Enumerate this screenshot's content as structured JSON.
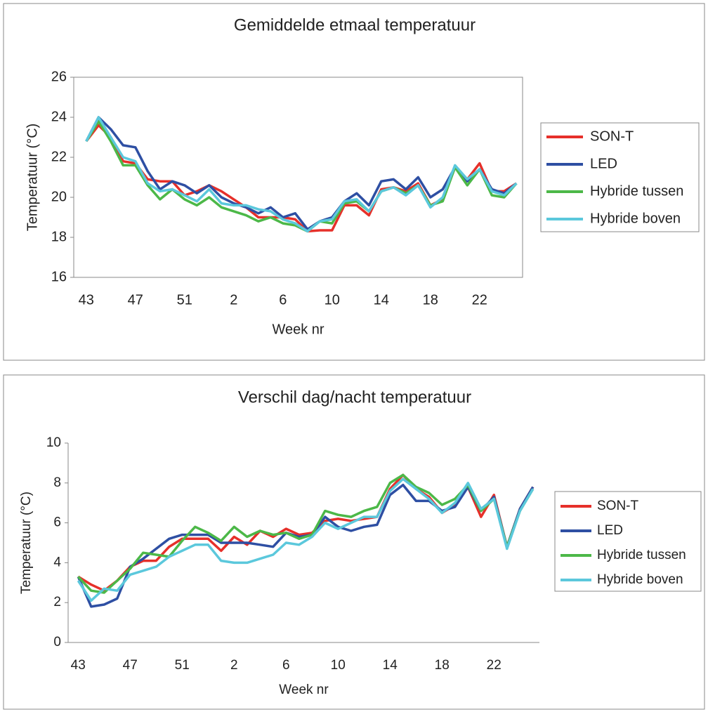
{
  "chart_data": [
    {
      "type": "line",
      "title": "Gemiddelde etmaal temperatuur",
      "x_label": "Week nr",
      "y_label": "Temperatuur (°C)",
      "categories": [
        "43",
        null,
        null,
        null,
        "47",
        null,
        null,
        null,
        "51",
        null,
        null,
        null,
        "2",
        null,
        null,
        null,
        "6",
        null,
        null,
        null,
        "10",
        null,
        null,
        null,
        "14",
        null,
        null,
        null,
        "18",
        null,
        null,
        null,
        "22",
        null,
        null,
        null
      ],
      "ylim": [
        16,
        26
      ],
      "yticks": [
        16,
        18,
        20,
        22,
        24,
        26
      ],
      "grid": false,
      "series": [
        {
          "name": "SON-T",
          "color": "#e6302a",
          "values": [
            22.8,
            23.6,
            23.0,
            21.8,
            21.7,
            20.9,
            20.8,
            20.8,
            20.1,
            20.3,
            20.6,
            20.3,
            19.9,
            19.5,
            19.0,
            19.0,
            19.0,
            18.9,
            18.3,
            18.35,
            18.35,
            19.6,
            19.6,
            19.1,
            20.4,
            20.5,
            20.3,
            20.7,
            19.6,
            19.9,
            21.5,
            20.9,
            21.7,
            20.3,
            20.3,
            20.7
          ]
        },
        {
          "name": "LED",
          "color": "#2e4fa3",
          "values": [
            22.8,
            24.0,
            23.4,
            22.6,
            22.5,
            21.3,
            20.4,
            20.8,
            20.6,
            20.2,
            20.6,
            20.0,
            19.7,
            19.5,
            19.2,
            19.5,
            19.0,
            19.2,
            18.4,
            18.8,
            19.0,
            19.8,
            20.2,
            19.6,
            20.8,
            20.9,
            20.4,
            21.0,
            20.0,
            20.4,
            21.5,
            20.8,
            21.4,
            20.4,
            20.2,
            20.7
          ]
        },
        {
          "name": "Hybride tussen",
          "color": "#4cb848",
          "values": [
            22.8,
            23.8,
            22.8,
            21.6,
            21.6,
            20.6,
            19.9,
            20.4,
            19.9,
            19.6,
            20.0,
            19.5,
            19.3,
            19.1,
            18.8,
            19.0,
            18.7,
            18.6,
            18.3,
            18.8,
            18.7,
            19.7,
            19.8,
            19.3,
            20.3,
            20.5,
            20.2,
            20.6,
            19.6,
            19.8,
            21.5,
            20.6,
            21.4,
            20.1,
            20.0,
            20.7
          ]
        },
        {
          "name": "Hybride boven",
          "color": "#5bc8dc",
          "values": [
            22.8,
            24.0,
            23.0,
            22.0,
            21.8,
            20.7,
            20.3,
            20.4,
            20.1,
            19.8,
            20.4,
            19.7,
            19.6,
            19.6,
            19.4,
            19.3,
            18.9,
            18.7,
            18.3,
            18.8,
            18.9,
            19.8,
            19.9,
            19.3,
            20.3,
            20.5,
            20.1,
            20.6,
            19.5,
            20.0,
            21.6,
            20.9,
            21.4,
            20.3,
            20.1,
            20.7
          ]
        }
      ]
    },
    {
      "type": "line",
      "title": "Verschil dag/nacht temperatuur",
      "x_label": "Week nr",
      "y_label": "Temperatuur (°C)",
      "categories": [
        "43",
        null,
        null,
        null,
        "47",
        null,
        null,
        null,
        "51",
        null,
        null,
        null,
        "2",
        null,
        null,
        null,
        "6",
        null,
        null,
        null,
        "10",
        null,
        null,
        null,
        "14",
        null,
        null,
        null,
        "18",
        null,
        null,
        null,
        "22",
        null,
        null,
        null
      ],
      "ylim": [
        0,
        10
      ],
      "yticks": [
        0,
        2,
        4,
        6,
        8,
        10
      ],
      "grid": false,
      "series": [
        {
          "name": "SON-T",
          "color": "#e6302a",
          "values": [
            3.3,
            2.9,
            2.6,
            3.1,
            3.8,
            4.1,
            4.1,
            4.8,
            5.2,
            5.2,
            5.2,
            4.6,
            5.3,
            4.9,
            5.6,
            5.3,
            5.7,
            5.4,
            5.5,
            6.1,
            6.2,
            6.1,
            6.2,
            6.3,
            7.7,
            8.4,
            7.7,
            7.3,
            6.5,
            6.9,
            7.8,
            6.3,
            7.4,
            4.8,
            6.7,
            7.8
          ]
        },
        {
          "name": "LED",
          "color": "#2e4fa3",
          "values": [
            3.3,
            1.8,
            1.9,
            2.2,
            3.8,
            4.2,
            4.7,
            5.2,
            5.4,
            5.4,
            5.4,
            5.0,
            5.0,
            5.0,
            4.9,
            4.8,
            5.5,
            5.3,
            5.4,
            6.3,
            5.8,
            5.6,
            5.8,
            5.9,
            7.4,
            7.9,
            7.1,
            7.1,
            6.6,
            6.8,
            7.8,
            6.6,
            7.3,
            4.8,
            6.7,
            7.8
          ]
        },
        {
          "name": "Hybride tussen",
          "color": "#4cb848",
          "values": [
            3.3,
            2.6,
            2.5,
            3.1,
            3.7,
            4.5,
            4.4,
            4.3,
            5.1,
            5.8,
            5.5,
            5.1,
            5.8,
            5.3,
            5.6,
            5.4,
            5.5,
            5.2,
            5.4,
            6.6,
            6.4,
            6.3,
            6.6,
            6.8,
            8.0,
            8.4,
            7.8,
            7.5,
            6.9,
            7.2,
            7.9,
            6.6,
            7.2,
            4.8,
            6.6,
            7.7
          ]
        },
        {
          "name": "Hybride boven",
          "color": "#5bc8dc",
          "values": [
            3.1,
            2.1,
            2.7,
            2.6,
            3.4,
            3.6,
            3.8,
            4.3,
            4.6,
            4.9,
            4.9,
            4.1,
            4.0,
            4.0,
            4.2,
            4.4,
            5.0,
            4.9,
            5.3,
            6.0,
            5.7,
            6.0,
            6.3,
            6.3,
            7.6,
            8.2,
            7.7,
            7.2,
            6.5,
            7.0,
            8.0,
            6.7,
            7.2,
            4.7,
            6.6,
            7.7
          ]
        }
      ]
    }
  ]
}
